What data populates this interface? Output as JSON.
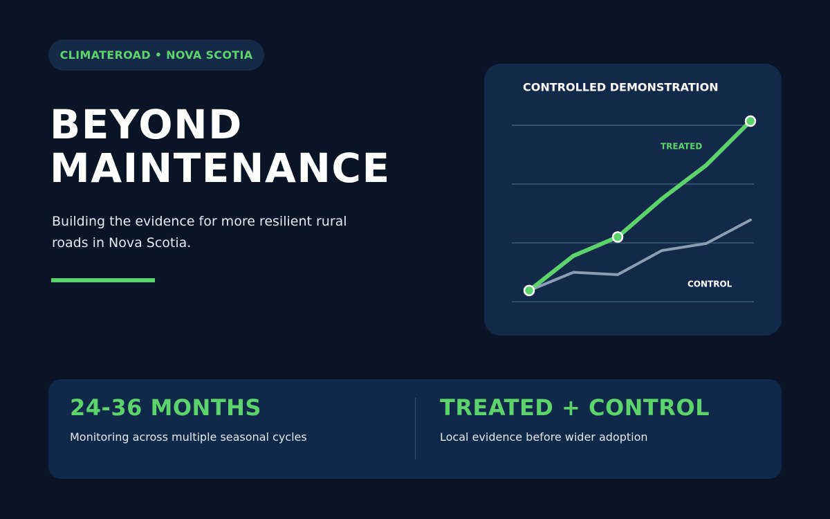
{
  "badge": "CLIMATEROAD • NOVA SCOTIA",
  "title_lines": [
    "BEYOND",
    "MAINTENANCE"
  ],
  "subtitle": "Building the evidence for more resilient rural roads in Nova Scotia.",
  "chart_data": {
    "type": "line",
    "title": "CONTROLLED DEMONSTRATION",
    "categories": [
      null,
      null,
      null,
      null,
      null,
      null
    ],
    "series": [
      {
        "name": "TREATED",
        "color": "#5dd36b",
        "values": [
          0.19,
          0.78,
          1.1,
          1.75,
          2.32,
          3.07
        ],
        "markers": [
          0,
          2,
          5
        ]
      },
      {
        "name": "CONTROL",
        "color": "#8d9db6",
        "values": [
          0.19,
          0.5,
          0.46,
          0.87,
          0.99,
          1.39
        ]
      }
    ],
    "ylim": [
      0,
      3.1
    ],
    "yticks": [
      0,
      1,
      2,
      3
    ],
    "grid": true
  },
  "stats": [
    {
      "headline": "24-36 MONTHS",
      "text": "Monitoring across multiple seasonal cycles"
    },
    {
      "headline": "TREATED + CONTROL",
      "text": "Local evidence before wider adoption"
    }
  ]
}
